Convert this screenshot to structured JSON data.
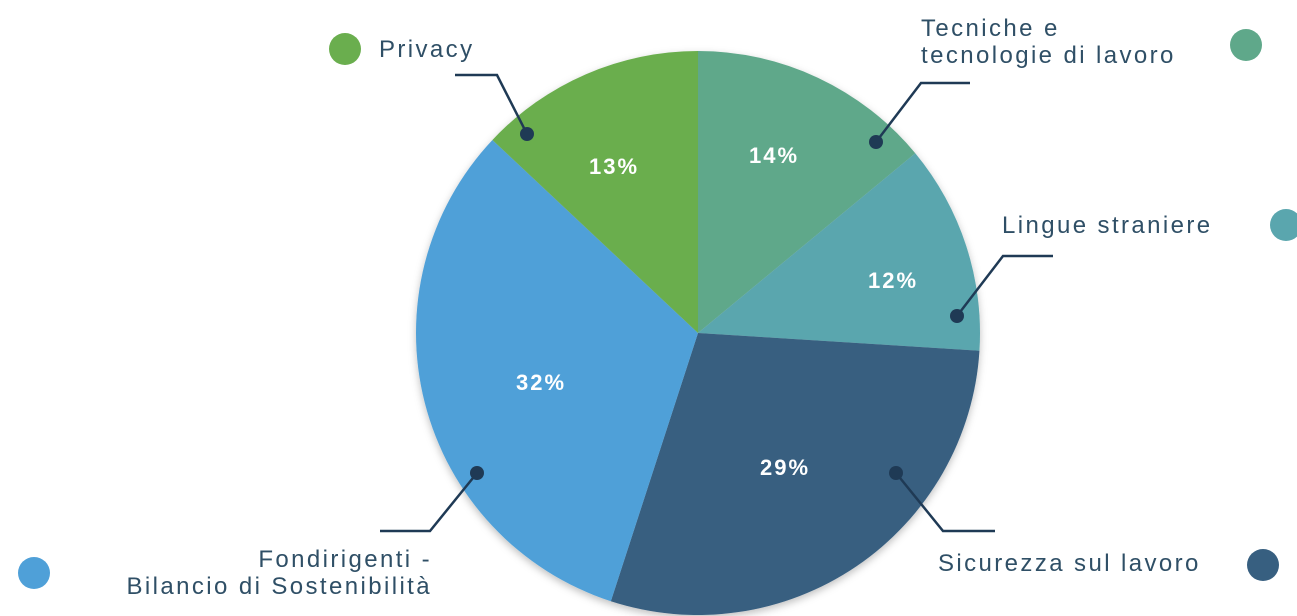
{
  "chart_data": {
    "type": "pie",
    "categories": [
      "Tecniche e\ntecnologie di lavoro",
      "Lingue straniere",
      "Sicurezza sul lavoro",
      "Fondirigenti -\nBilancio di Sostenibilità",
      "Privacy"
    ],
    "values": [
      14,
      12,
      29,
      32,
      13
    ],
    "value_labels": [
      "14%",
      "12%",
      "29%",
      "32%",
      "13%"
    ],
    "colors": [
      "#5fa88a",
      "#5aa6ae",
      "#375f80",
      "#4fa0d8",
      "#6aae4e"
    ]
  }
}
